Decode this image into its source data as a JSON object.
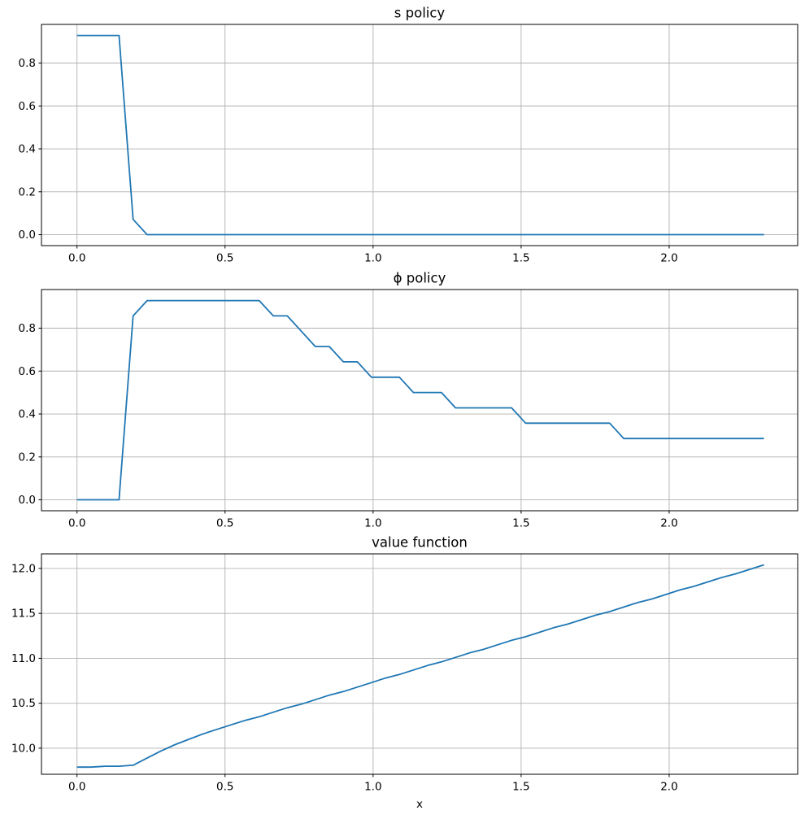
{
  "figure": {
    "background": "#ffffff",
    "line_color": "#1f77b4",
    "grid_color": "#b0b0b0",
    "spine_color": "#000000",
    "tick_color": "#000000",
    "xlabel": "x"
  },
  "chart_data": [
    {
      "type": "line",
      "name": "s-policy",
      "title": "s policy",
      "xlabel": "",
      "ylabel": "",
      "grid": true,
      "legend": "none",
      "xlim": [
        -0.12,
        2.434
      ],
      "ylim": [
        -0.051,
        0.98
      ],
      "x_ticks": [
        0.0,
        0.5,
        1.0,
        1.5,
        2.0
      ],
      "x_tick_labels": [
        "0.0",
        "0.5",
        "1.0",
        "1.5",
        "2.0"
      ],
      "y_ticks": [
        0.0,
        0.2,
        0.4,
        0.6,
        0.8
      ],
      "y_tick_labels": [
        "0.0",
        "0.2",
        "0.4",
        "0.6",
        "0.8"
      ],
      "series": [
        {
          "name": "s",
          "x": [
            0.0,
            0.0473,
            0.0947,
            0.142,
            0.1894,
            0.2367,
            0.2841,
            0.3314,
            0.3788,
            0.4261,
            0.4735,
            0.5208,
            0.5682,
            0.6155,
            0.6629,
            0.7102,
            0.7576,
            0.8049,
            0.8522,
            0.8996,
            0.9469,
            0.9943,
            1.0416,
            1.089,
            1.1363,
            1.1837,
            1.231,
            1.2784,
            1.3257,
            1.3731,
            1.4204,
            1.4678,
            1.5151,
            1.5624,
            1.6098,
            1.6571,
            1.7045,
            1.7518,
            1.7992,
            1.8465,
            1.8939,
            1.9412,
            1.9886,
            2.0359,
            2.0833,
            2.1306,
            2.178,
            2.2253,
            2.2727,
            2.32
          ],
          "y": [
            0.9286,
            0.9286,
            0.9286,
            0.9286,
            0.0714,
            0.0,
            0.0,
            0.0,
            0.0,
            0.0,
            0.0,
            0.0,
            0.0,
            0.0,
            0.0,
            0.0,
            0.0,
            0.0,
            0.0,
            0.0,
            0.0,
            0.0,
            0.0,
            0.0,
            0.0,
            0.0,
            0.0,
            0.0,
            0.0,
            0.0,
            0.0,
            0.0,
            0.0,
            0.0,
            0.0,
            0.0,
            0.0,
            0.0,
            0.0,
            0.0,
            0.0,
            0.0,
            0.0,
            0.0,
            0.0,
            0.0,
            0.0,
            0.0,
            0.0,
            0.0
          ]
        }
      ]
    },
    {
      "type": "line",
      "name": "phi-policy",
      "title": "ϕ policy",
      "xlabel": "",
      "ylabel": "",
      "grid": true,
      "legend": "none",
      "xlim": [
        -0.12,
        2.434
      ],
      "ylim": [
        -0.051,
        0.98
      ],
      "x_ticks": [
        0.0,
        0.5,
        1.0,
        1.5,
        2.0
      ],
      "x_tick_labels": [
        "0.0",
        "0.5",
        "1.0",
        "1.5",
        "2.0"
      ],
      "y_ticks": [
        0.0,
        0.2,
        0.4,
        0.6,
        0.8
      ],
      "y_tick_labels": [
        "0.0",
        "0.2",
        "0.4",
        "0.6",
        "0.8"
      ],
      "series": [
        {
          "name": "phi",
          "x": [
            0.0,
            0.0473,
            0.0947,
            0.142,
            0.1894,
            0.2367,
            0.2841,
            0.3314,
            0.3788,
            0.4261,
            0.4735,
            0.5208,
            0.5682,
            0.6155,
            0.6629,
            0.7102,
            0.7576,
            0.8049,
            0.8522,
            0.8996,
            0.9469,
            0.9943,
            1.0416,
            1.089,
            1.1363,
            1.1837,
            1.231,
            1.2784,
            1.3257,
            1.3731,
            1.4204,
            1.4678,
            1.5151,
            1.5624,
            1.6098,
            1.6571,
            1.7045,
            1.7518,
            1.7992,
            1.8465,
            1.8939,
            1.9412,
            1.9886,
            2.0359,
            2.0833,
            2.1306,
            2.178,
            2.2253,
            2.2727,
            2.32
          ],
          "y": [
            0.0,
            0.0,
            0.0,
            0.0,
            0.8571,
            0.9286,
            0.9286,
            0.9286,
            0.9286,
            0.9286,
            0.9286,
            0.9286,
            0.9286,
            0.9286,
            0.8571,
            0.8571,
            0.7857,
            0.7143,
            0.7143,
            0.6429,
            0.6429,
            0.5714,
            0.5714,
            0.5714,
            0.5,
            0.5,
            0.5,
            0.4286,
            0.4286,
            0.4286,
            0.4286,
            0.4286,
            0.3571,
            0.3571,
            0.3571,
            0.3571,
            0.3571,
            0.3571,
            0.3571,
            0.2857,
            0.2857,
            0.2857,
            0.2857,
            0.2857,
            0.2857,
            0.2857,
            0.2857,
            0.2857,
            0.2857,
            0.2857
          ]
        }
      ]
    },
    {
      "type": "line",
      "name": "value-function",
      "title": "value function",
      "xlabel": "x",
      "ylabel": "",
      "grid": true,
      "legend": "none",
      "xlim": [
        -0.12,
        2.434
      ],
      "ylim": [
        9.71,
        12.162
      ],
      "x_ticks": [
        0.0,
        0.5,
        1.0,
        1.5,
        2.0
      ],
      "x_tick_labels": [
        "0.0",
        "0.5",
        "1.0",
        "1.5",
        "2.0"
      ],
      "y_ticks": [
        10.0,
        10.5,
        11.0,
        11.5,
        12.0
      ],
      "y_tick_labels": [
        "10.0",
        "10.5",
        "11.0",
        "11.5",
        "12.0"
      ],
      "series": [
        {
          "name": "v",
          "x": [
            0.0,
            0.0473,
            0.0947,
            0.142,
            0.1894,
            0.2367,
            0.2841,
            0.3314,
            0.3788,
            0.4261,
            0.4735,
            0.5208,
            0.5682,
            0.6155,
            0.6629,
            0.7102,
            0.7576,
            0.8049,
            0.8522,
            0.8996,
            0.9469,
            0.9943,
            1.0416,
            1.089,
            1.1363,
            1.1837,
            1.231,
            1.2784,
            1.3257,
            1.3731,
            1.4204,
            1.4678,
            1.5151,
            1.5624,
            1.6098,
            1.6571,
            1.7045,
            1.7518,
            1.7992,
            1.8465,
            1.8939,
            1.9412,
            1.9886,
            2.0359,
            2.0833,
            2.1306,
            2.178,
            2.2253,
            2.2727,
            2.32
          ],
          "y": [
            9.79,
            9.79,
            9.8,
            9.8,
            9.81,
            9.89,
            9.97,
            10.04,
            10.1,
            10.16,
            10.21,
            10.26,
            10.31,
            10.35,
            10.4,
            10.45,
            10.49,
            10.54,
            10.59,
            10.63,
            10.68,
            10.73,
            10.78,
            10.82,
            10.87,
            10.92,
            10.96,
            11.01,
            11.06,
            11.1,
            11.15,
            11.2,
            11.24,
            11.29,
            11.34,
            11.38,
            11.43,
            11.48,
            11.52,
            11.57,
            11.62,
            11.66,
            11.71,
            11.76,
            11.8,
            11.85,
            11.9,
            11.94,
            11.99,
            12.04
          ]
        }
      ]
    }
  ]
}
